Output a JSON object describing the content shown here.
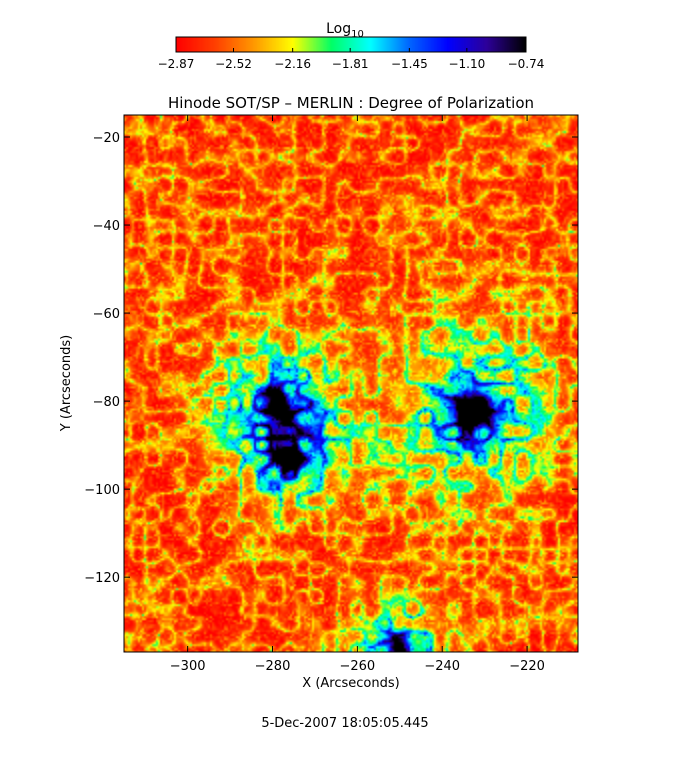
{
  "chart_data": {
    "type": "heatmap",
    "title": "Hinode SOT/SP – MERLIN : Degree of Polarization",
    "xlabel": "X (Arcseconds)",
    "ylabel": "Y (Arcseconds)",
    "xlim": [
      -315,
      -208
    ],
    "ylim": [
      -137,
      -15
    ],
    "x_ticks": [
      -300,
      -280,
      -260,
      -240,
      -220
    ],
    "y_ticks": [
      -20,
      -40,
      -60,
      -80,
      -100,
      -120
    ],
    "colorbar": {
      "label_base": "Log",
      "label_sub": "10",
      "range": [
        -2.87,
        -0.74
      ],
      "ticks": [
        -2.87,
        -2.52,
        -2.16,
        -1.81,
        -1.45,
        -1.1,
        -0.74
      ],
      "tick_labels": [
        "−2.87",
        "−2.52",
        "−2.16",
        "−1.81",
        "−1.45",
        "−1.10",
        "−0.74"
      ],
      "colors": [
        "#ff0000",
        "#ff4000",
        "#ff9900",
        "#ffff00",
        "#00ff66",
        "#00ffff",
        "#0066ff",
        "#0000ff",
        "#2d0099",
        "#000000"
      ]
    },
    "features": [
      {
        "x": -279,
        "y": -81,
        "value": -0.85,
        "radius": 2.5
      },
      {
        "x": -276,
        "y": -93,
        "value": -0.95,
        "radius": 2.0
      },
      {
        "x": -233,
        "y": -82,
        "value": -0.8,
        "radius": 3.5
      },
      {
        "x": -250,
        "y": -137,
        "value": -1.1,
        "radius": 2.0
      }
    ],
    "footer": "5-Dec-2007 18:05:05.445"
  }
}
